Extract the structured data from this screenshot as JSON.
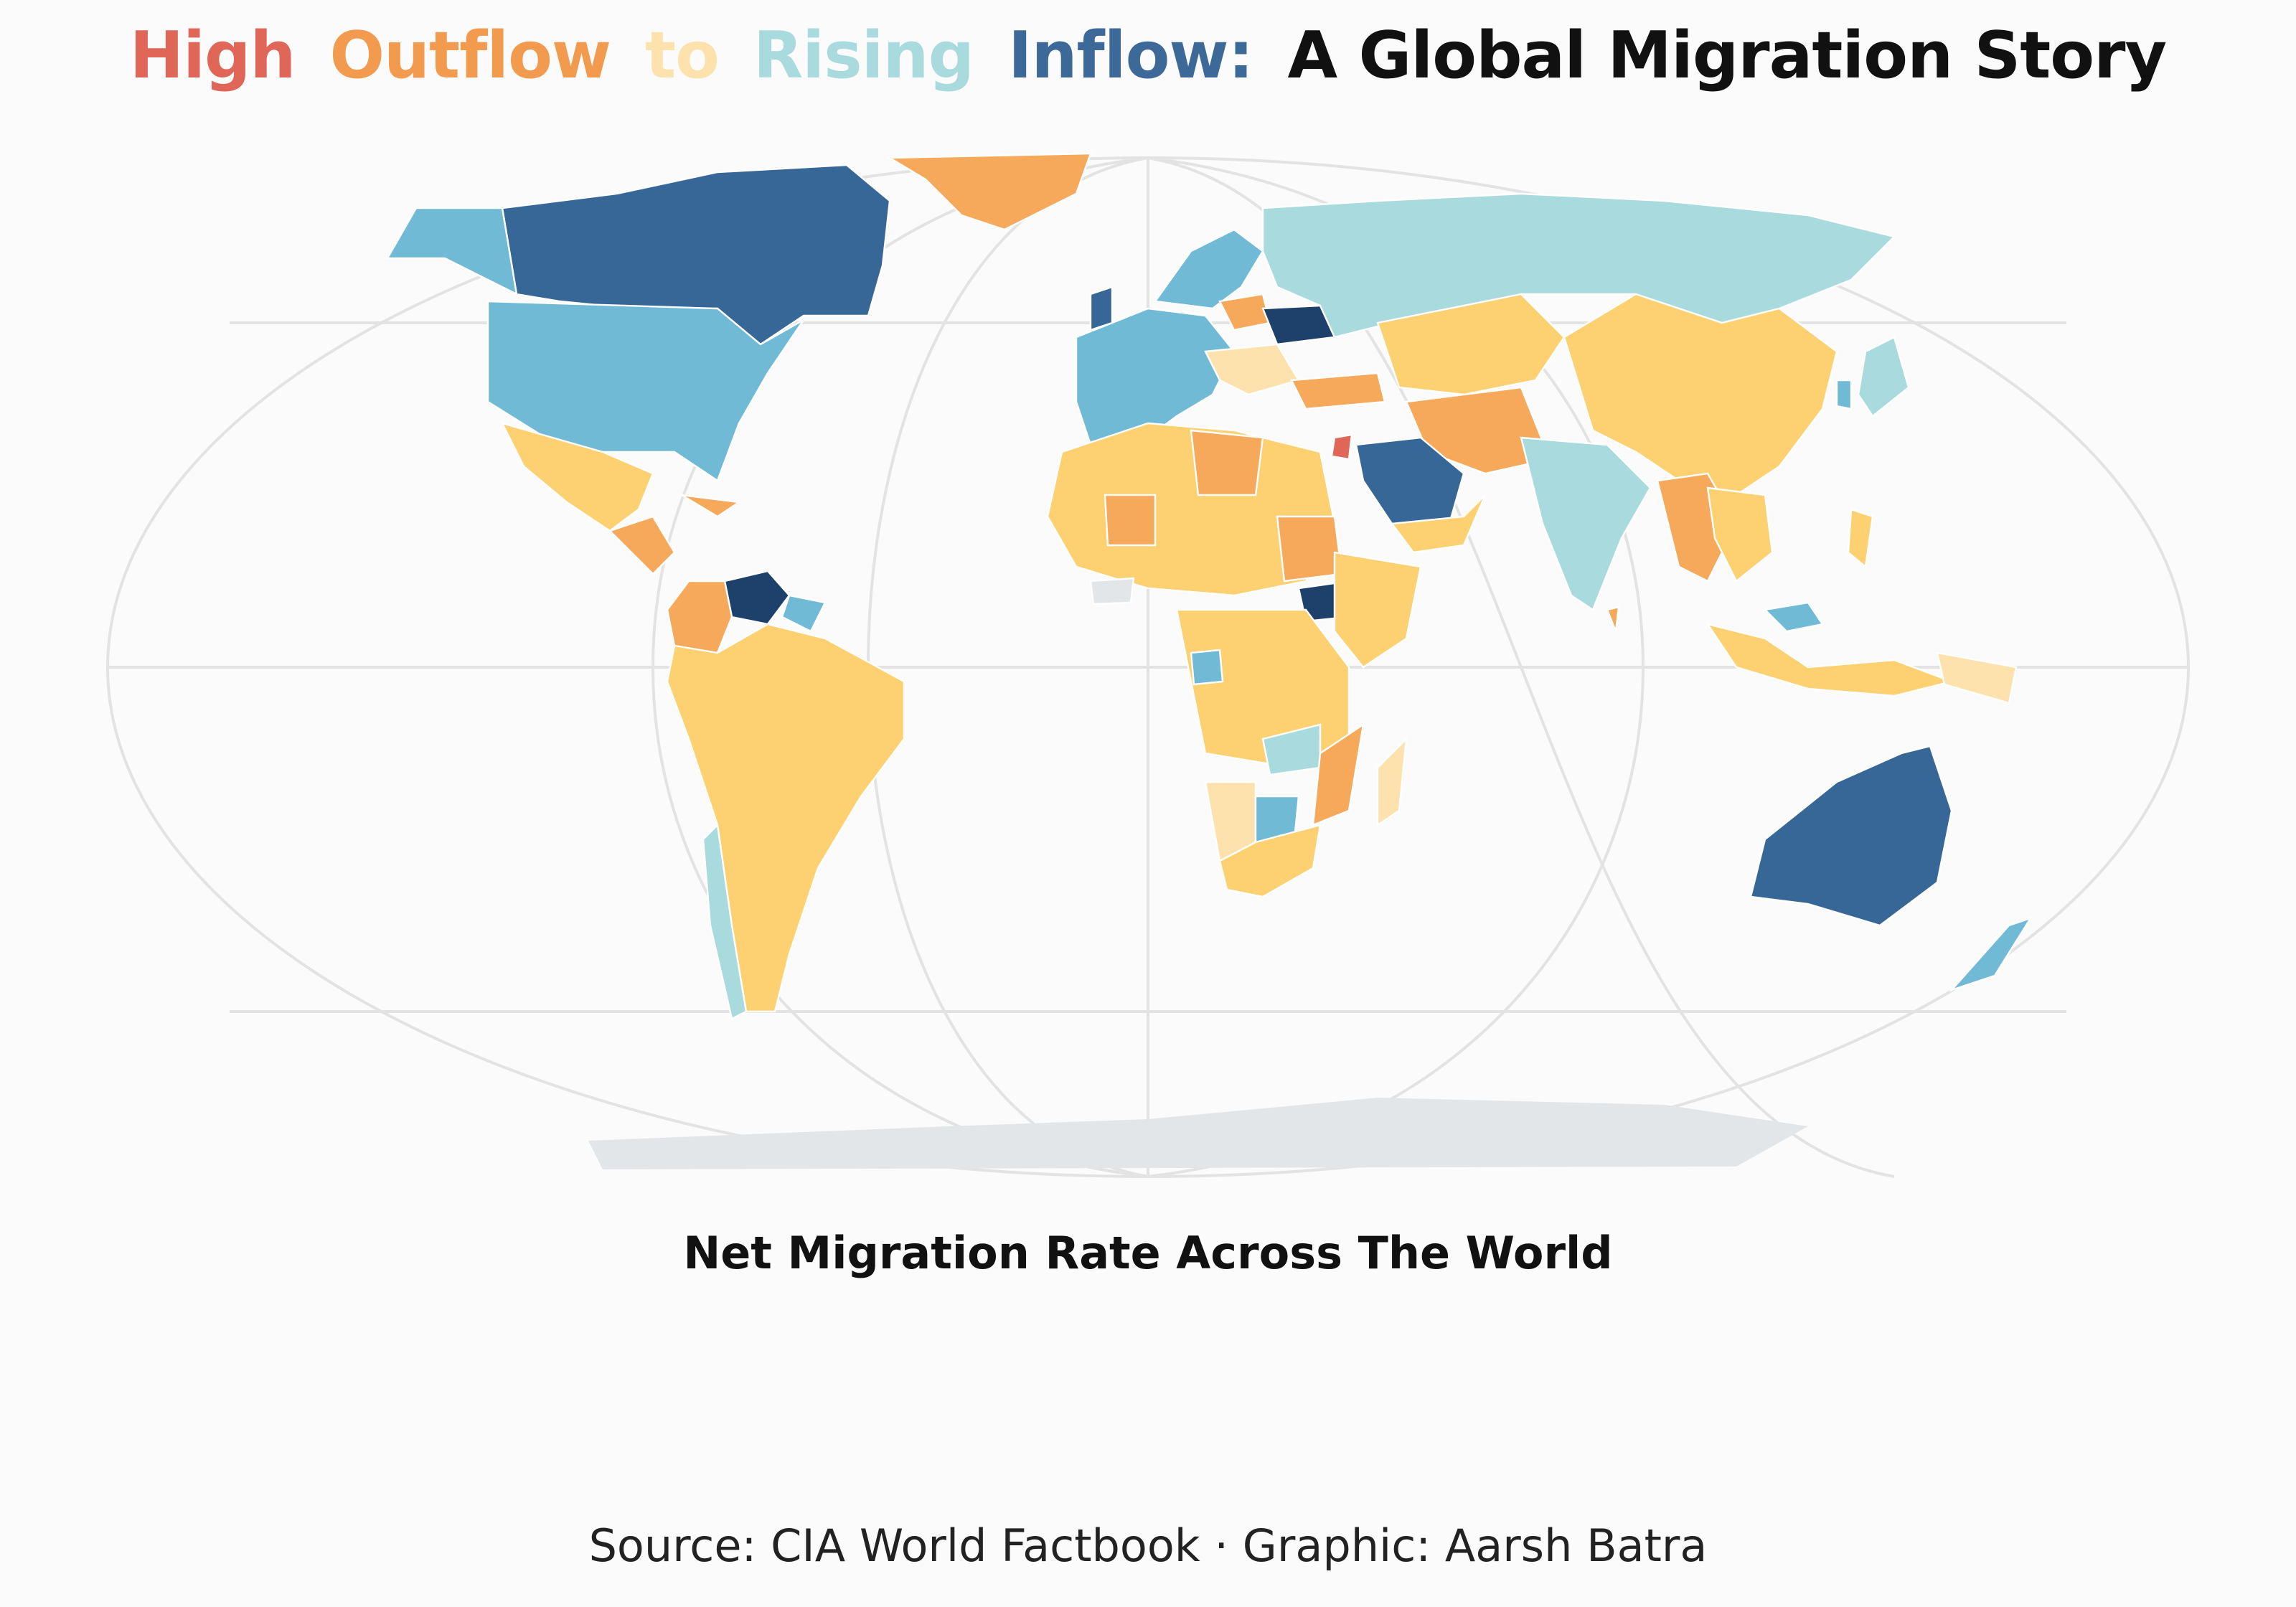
{
  "title": {
    "words": [
      "High",
      "Outflow",
      "to",
      "Rising",
      "Inflow:",
      "A Global Migration Story"
    ],
    "colors": [
      "#e06658",
      "#f29a4e",
      "#fde2ad",
      "#a8dade",
      "#3d6998",
      "#111111"
    ]
  },
  "subtitle": "Net Migration Rate Across The World",
  "caption": "Source: CIA World Factbook · Graphic: Aarsh Batra",
  "map": {
    "projection": "Robinson",
    "graticule": true,
    "palette": {
      "high_outflow": "#e06658",
      "outflow": "#f6a85b",
      "slight_outflow": "#fdd072",
      "neutral": "#fde2ad",
      "rising_inflow": "#a8dade",
      "inflow": "#70bad6",
      "high_inflow": "#376796",
      "very_high_inflow": "#1e416b",
      "no_data": "#e3e6e9"
    }
  }
}
